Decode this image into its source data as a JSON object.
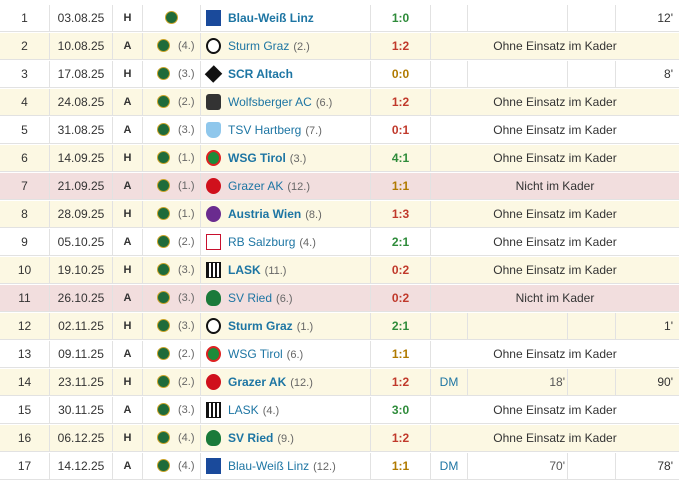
{
  "labels": {
    "no_appearance": "Ohne Einsatz im Kader",
    "not_in_squad": "Nicht im Kader"
  },
  "icons": {
    "own_club": "club-crest-icon",
    "opponent": "opponent-crest-icon"
  },
  "colors": {
    "row_odd": "#ffffff",
    "row_even": "#fcf8e3",
    "row_not_in_squad": "#f2dede",
    "link": "#1d75a3",
    "win": "#2e8b3a",
    "draw": "#b07a00",
    "loss": "#c0392b"
  },
  "matches": [
    {
      "num": "1",
      "date": "03.08.25",
      "venue": "H",
      "own_rank": "",
      "opp": "Blau-Weiß Linz",
      "opp_rank": "",
      "result": "1:0",
      "outcome": "win",
      "status": "played",
      "pos": "",
      "sub_on": "",
      "minutes": "12'",
      "logo": "bwl"
    },
    {
      "num": "2",
      "date": "10.08.25",
      "venue": "A",
      "own_rank": "(4.)",
      "opp": "Sturm Graz",
      "opp_rank": "(2.)",
      "result": "1:2",
      "outcome": "loss",
      "status": "no_appearance",
      "pos": "",
      "sub_on": "",
      "minutes": "",
      "logo": "sturm"
    },
    {
      "num": "3",
      "date": "17.08.25",
      "venue": "H",
      "own_rank": "(3.)",
      "opp": "SCR Altach",
      "opp_rank": "",
      "result": "0:0",
      "outcome": "draw",
      "status": "played",
      "pos": "",
      "sub_on": "",
      "minutes": "8'",
      "logo": "altach"
    },
    {
      "num": "4",
      "date": "24.08.25",
      "venue": "A",
      "own_rank": "(2.)",
      "opp": "Wolfsberger AC",
      "opp_rank": "(6.)",
      "result": "1:2",
      "outcome": "loss",
      "status": "no_appearance",
      "pos": "",
      "sub_on": "",
      "minutes": "",
      "logo": "wac"
    },
    {
      "num": "5",
      "date": "31.08.25",
      "venue": "A",
      "own_rank": "(3.)",
      "opp": "TSV Hartberg",
      "opp_rank": "(7.)",
      "result": "0:1",
      "outcome": "loss",
      "status": "no_appearance",
      "pos": "",
      "sub_on": "",
      "minutes": "",
      "logo": "hart"
    },
    {
      "num": "6",
      "date": "14.09.25",
      "venue": "H",
      "own_rank": "(1.)",
      "opp": "WSG Tirol",
      "opp_rank": "(3.)",
      "result": "4:1",
      "outcome": "win",
      "status": "no_appearance",
      "pos": "",
      "sub_on": "",
      "minutes": "",
      "logo": "wsg"
    },
    {
      "num": "7",
      "date": "21.09.25",
      "venue": "A",
      "own_rank": "(1.)",
      "opp": "Grazer AK",
      "opp_rank": "(12.)",
      "result": "1:1",
      "outcome": "draw",
      "status": "not_in_squad",
      "pos": "",
      "sub_on": "",
      "minutes": "",
      "logo": "gak"
    },
    {
      "num": "8",
      "date": "28.09.25",
      "venue": "H",
      "own_rank": "(1.)",
      "opp": "Austria Wien",
      "opp_rank": "(8.)",
      "result": "1:3",
      "outcome": "loss",
      "status": "no_appearance",
      "pos": "",
      "sub_on": "",
      "minutes": "",
      "logo": "austria"
    },
    {
      "num": "9",
      "date": "05.10.25",
      "venue": "A",
      "own_rank": "(2.)",
      "opp": "RB Salzburg",
      "opp_rank": "(4.)",
      "result": "2:1",
      "outcome": "win",
      "status": "no_appearance",
      "pos": "",
      "sub_on": "",
      "minutes": "",
      "logo": "rbs"
    },
    {
      "num": "10",
      "date": "19.10.25",
      "venue": "H",
      "own_rank": "(3.)",
      "opp": "LASK",
      "opp_rank": "(11.)",
      "result": "0:2",
      "outcome": "loss",
      "status": "no_appearance",
      "pos": "",
      "sub_on": "",
      "minutes": "",
      "logo": "lask"
    },
    {
      "num": "11",
      "date": "26.10.25",
      "venue": "A",
      "own_rank": "(3.)",
      "opp": "SV Ried",
      "opp_rank": "(6.)",
      "result": "0:2",
      "outcome": "loss",
      "status": "not_in_squad",
      "pos": "",
      "sub_on": "",
      "minutes": "",
      "logo": "ried"
    },
    {
      "num": "12",
      "date": "02.11.25",
      "venue": "H",
      "own_rank": "(3.)",
      "opp": "Sturm Graz",
      "opp_rank": "(1.)",
      "result": "2:1",
      "outcome": "win",
      "status": "played",
      "pos": "",
      "sub_on": "",
      "minutes": "1'",
      "logo": "sturm"
    },
    {
      "num": "13",
      "date": "09.11.25",
      "venue": "A",
      "own_rank": "(2.)",
      "opp": "WSG Tirol",
      "opp_rank": "(6.)",
      "result": "1:1",
      "outcome": "draw",
      "status": "no_appearance",
      "pos": "",
      "sub_on": "",
      "minutes": "",
      "logo": "wsg"
    },
    {
      "num": "14",
      "date": "23.11.25",
      "venue": "H",
      "own_rank": "(2.)",
      "opp": "Grazer AK",
      "opp_rank": "(12.)",
      "result": "1:2",
      "outcome": "loss",
      "status": "played",
      "pos": "DM",
      "sub_on": "18'",
      "minutes": "90'",
      "logo": "gak"
    },
    {
      "num": "15",
      "date": "30.11.25",
      "venue": "A",
      "own_rank": "(3.)",
      "opp": "LASK",
      "opp_rank": "(4.)",
      "result": "3:0",
      "outcome": "win",
      "status": "no_appearance",
      "pos": "",
      "sub_on": "",
      "minutes": "",
      "logo": "lask"
    },
    {
      "num": "16",
      "date": "06.12.25",
      "venue": "H",
      "own_rank": "(4.)",
      "opp": "SV Ried",
      "opp_rank": "(9.)",
      "result": "1:2",
      "outcome": "loss",
      "status": "no_appearance",
      "pos": "",
      "sub_on": "",
      "minutes": "",
      "logo": "ried"
    },
    {
      "num": "17",
      "date": "14.12.25",
      "venue": "A",
      "own_rank": "(4.)",
      "opp": "Blau-Weiß Linz",
      "opp_rank": "(12.)",
      "result": "1:1",
      "outcome": "draw",
      "status": "played",
      "pos": "DM",
      "sub_on": "70'",
      "minutes": "78'",
      "logo": "bwl"
    }
  ]
}
